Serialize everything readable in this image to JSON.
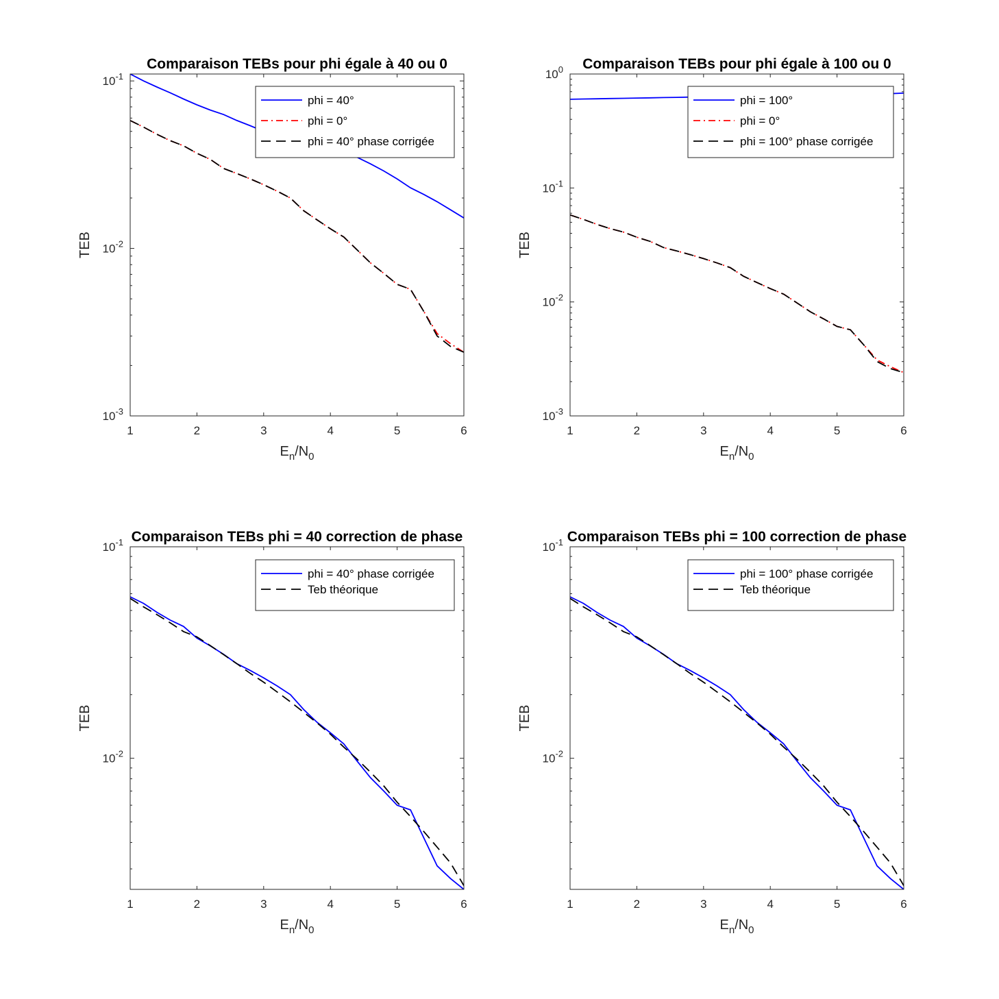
{
  "figure": {
    "colors": {
      "blue": "#0000ff",
      "red": "#ff0000",
      "black": "#000000",
      "axis": "#262626"
    }
  },
  "chart_data": [
    {
      "type": "line",
      "title": "Comparaison TEBs pour phi égale à 40 ou 0",
      "xlabel": "E_n/N_0",
      "ylabel": "TEB",
      "xlim": [
        1,
        6
      ],
      "ylim": [
        0.001,
        0.11
      ],
      "yscale": "log",
      "grid": false,
      "legend": "top-right",
      "xticks": [
        "1",
        "2",
        "3",
        "4",
        "5",
        "6"
      ],
      "yticks": [
        {
          "value": 0.1,
          "base": "10",
          "exp": "-1"
        },
        {
          "value": 0.01,
          "base": "10",
          "exp": "-2"
        },
        {
          "value": 0.001,
          "base": "10",
          "exp": "-3"
        }
      ],
      "x": [
        1,
        1.2,
        1.4,
        1.6,
        1.8,
        2,
        2.2,
        2.4,
        2.6,
        2.8,
        3,
        3.2,
        3.4,
        3.6,
        3.8,
        4,
        4.2,
        4.4,
        4.6,
        4.8,
        5,
        5.2,
        5.4,
        5.6,
        5.8,
        6
      ],
      "series": [
        {
          "name": "phi = 40° ",
          "color": "blue",
          "style": "solid",
          "values": [
            0.11,
            0.1,
            0.092,
            0.085,
            0.078,
            0.072,
            0.067,
            0.063,
            0.058,
            0.054,
            0.05,
            0.047,
            0.045,
            0.043,
            0.041,
            0.039,
            0.037,
            0.035,
            0.032,
            0.029,
            0.026,
            0.023,
            0.021,
            0.019,
            0.017,
            0.0152
          ]
        },
        {
          "name": "phi = 0° ",
          "color": "red",
          "style": "dashdot",
          "values": [
            0.058,
            0.053,
            0.048,
            0.044,
            0.041,
            0.037,
            0.034,
            0.03,
            0.028,
            0.026,
            0.024,
            0.022,
            0.02,
            0.0168,
            0.0148,
            0.0131,
            0.0117,
            0.0098,
            0.0082,
            0.0071,
            0.0061,
            0.0057,
            0.0042,
            0.0031,
            0.0027,
            0.0024
          ]
        },
        {
          "name": "phi = 40° phase corrigée",
          "color": "black",
          "style": "dashed",
          "values": [
            0.058,
            0.053,
            0.048,
            0.044,
            0.041,
            0.037,
            0.034,
            0.03,
            0.028,
            0.026,
            0.024,
            0.022,
            0.02,
            0.0168,
            0.0148,
            0.0131,
            0.0117,
            0.0098,
            0.0082,
            0.0071,
            0.0061,
            0.0057,
            0.0042,
            0.003,
            0.0026,
            0.0024
          ]
        }
      ]
    },
    {
      "type": "line",
      "title": "Comparaison TEBs pour phi égale à 100 ou 0",
      "xlabel": "E_n/N_0",
      "ylabel": "TEB",
      "xlim": [
        1,
        6
      ],
      "ylim": [
        0.001,
        1
      ],
      "yscale": "log",
      "grid": false,
      "legend": "top-right",
      "xticks": [
        "1",
        "2",
        "3",
        "4",
        "5",
        "6"
      ],
      "yticks": [
        {
          "value": 1,
          "base": "10",
          "exp": "0"
        },
        {
          "value": 0.1,
          "base": "10",
          "exp": "-1"
        },
        {
          "value": 0.01,
          "base": "10",
          "exp": "-2"
        },
        {
          "value": 0.001,
          "base": "10",
          "exp": "-3"
        }
      ],
      "x": [
        1,
        1.2,
        1.4,
        1.6,
        1.8,
        2,
        2.2,
        2.4,
        2.6,
        2.8,
        3,
        3.2,
        3.4,
        3.6,
        3.8,
        4,
        4.2,
        4.4,
        4.6,
        4.8,
        5,
        5.2,
        5.4,
        5.6,
        5.8,
        6
      ],
      "series": [
        {
          "name": "phi = 100° ",
          "color": "blue",
          "style": "solid",
          "values": [
            0.6,
            0.603,
            0.606,
            0.609,
            0.612,
            0.615,
            0.618,
            0.621,
            0.624,
            0.627,
            0.63,
            0.633,
            0.636,
            0.639,
            0.642,
            0.645,
            0.648,
            0.651,
            0.654,
            0.657,
            0.66,
            0.663,
            0.666,
            0.669,
            0.672,
            0.68
          ]
        },
        {
          "name": "phi = 0° ",
          "color": "red",
          "style": "dashdot",
          "values": [
            0.058,
            0.053,
            0.048,
            0.044,
            0.041,
            0.037,
            0.034,
            0.03,
            0.028,
            0.026,
            0.024,
            0.022,
            0.02,
            0.0168,
            0.0148,
            0.0131,
            0.0117,
            0.0098,
            0.0082,
            0.0071,
            0.0061,
            0.0057,
            0.0042,
            0.0031,
            0.0027,
            0.0024
          ]
        },
        {
          "name": "phi = 100° phase corrigée",
          "color": "black",
          "style": "dashed",
          "values": [
            0.058,
            0.053,
            0.048,
            0.044,
            0.041,
            0.037,
            0.034,
            0.03,
            0.028,
            0.026,
            0.024,
            0.022,
            0.02,
            0.0168,
            0.0148,
            0.0131,
            0.0117,
            0.0098,
            0.0082,
            0.0071,
            0.0061,
            0.0057,
            0.0042,
            0.003,
            0.0026,
            0.0024
          ]
        }
      ]
    },
    {
      "type": "line",
      "title": "Comparaison TEBs phi = 40 correction de phase",
      "xlabel": "E_n/N_0",
      "ylabel": "TEB",
      "xlim": [
        1,
        6
      ],
      "ylim": [
        0.0024,
        0.1
      ],
      "yscale": "log",
      "grid": false,
      "legend": "top-right",
      "xticks": [
        "1",
        "2",
        "3",
        "4",
        "5",
        "6"
      ],
      "yticks": [
        {
          "value": 0.1,
          "base": "10",
          "exp": "-1"
        },
        {
          "value": 0.01,
          "base": "10",
          "exp": "-2"
        }
      ],
      "x": [
        1,
        1.2,
        1.4,
        1.6,
        1.8,
        2,
        2.2,
        2.4,
        2.6,
        2.8,
        3,
        3.2,
        3.4,
        3.6,
        3.8,
        4,
        4.2,
        4.4,
        4.6,
        4.8,
        5,
        5.2,
        5.4,
        5.6,
        5.8,
        6
      ],
      "series": [
        {
          "name": "phi = 40° phase corrigée",
          "color": "blue",
          "style": "solid",
          "values": [
            0.058,
            0.054,
            0.049,
            0.045,
            0.042,
            0.037,
            0.034,
            0.031,
            0.028,
            0.026,
            0.024,
            0.022,
            0.02,
            0.017,
            0.0148,
            0.0132,
            0.0117,
            0.0097,
            0.0081,
            0.007,
            0.006,
            0.0057,
            0.0042,
            0.0031,
            0.0027,
            0.0024
          ]
        },
        {
          "name": "Teb théorique",
          "color": "black",
          "style": "dashed",
          "values": [
            0.057,
            0.052,
            0.0478,
            0.0437,
            0.0397,
            0.0375,
            0.0341,
            0.0309,
            0.028,
            0.0252,
            0.0229,
            0.0206,
            0.0185,
            0.0165,
            0.0147,
            0.013,
            0.0113,
            0.0099,
            0.0086,
            0.0074,
            0.0062,
            0.0053,
            0.0045,
            0.0038,
            0.0032,
            0.0025
          ]
        }
      ]
    },
    {
      "type": "line",
      "title": "Comparaison TEBs phi = 100 correction de phase",
      "xlabel": "E_n/N_0",
      "ylabel": "TEB",
      "xlim": [
        1,
        6
      ],
      "ylim": [
        0.0024,
        0.1
      ],
      "yscale": "log",
      "grid": false,
      "legend": "top-right",
      "xticks": [
        "1",
        "2",
        "3",
        "4",
        "5",
        "6"
      ],
      "yticks": [
        {
          "value": 0.1,
          "base": "10",
          "exp": "-1"
        },
        {
          "value": 0.01,
          "base": "10",
          "exp": "-2"
        }
      ],
      "x": [
        1,
        1.2,
        1.4,
        1.6,
        1.8,
        2,
        2.2,
        2.4,
        2.6,
        2.8,
        3,
        3.2,
        3.4,
        3.6,
        3.8,
        4,
        4.2,
        4.4,
        4.6,
        4.8,
        5,
        5.2,
        5.4,
        5.6,
        5.8,
        6
      ],
      "series": [
        {
          "name": "phi = 100° phase corrigée",
          "color": "blue",
          "style": "solid",
          "values": [
            0.058,
            0.054,
            0.049,
            0.045,
            0.042,
            0.037,
            0.034,
            0.031,
            0.028,
            0.026,
            0.024,
            0.022,
            0.02,
            0.017,
            0.0148,
            0.0132,
            0.0117,
            0.0097,
            0.0081,
            0.007,
            0.006,
            0.0057,
            0.0042,
            0.0031,
            0.0027,
            0.0024
          ]
        },
        {
          "name": "Teb théorique",
          "color": "black",
          "style": "dashed",
          "values": [
            0.057,
            0.052,
            0.0478,
            0.0437,
            0.0397,
            0.0375,
            0.0341,
            0.0309,
            0.028,
            0.0252,
            0.0229,
            0.0206,
            0.0185,
            0.0165,
            0.0147,
            0.013,
            0.0113,
            0.0099,
            0.0086,
            0.0074,
            0.0062,
            0.0053,
            0.0045,
            0.0038,
            0.0032,
            0.0025
          ]
        }
      ]
    }
  ]
}
